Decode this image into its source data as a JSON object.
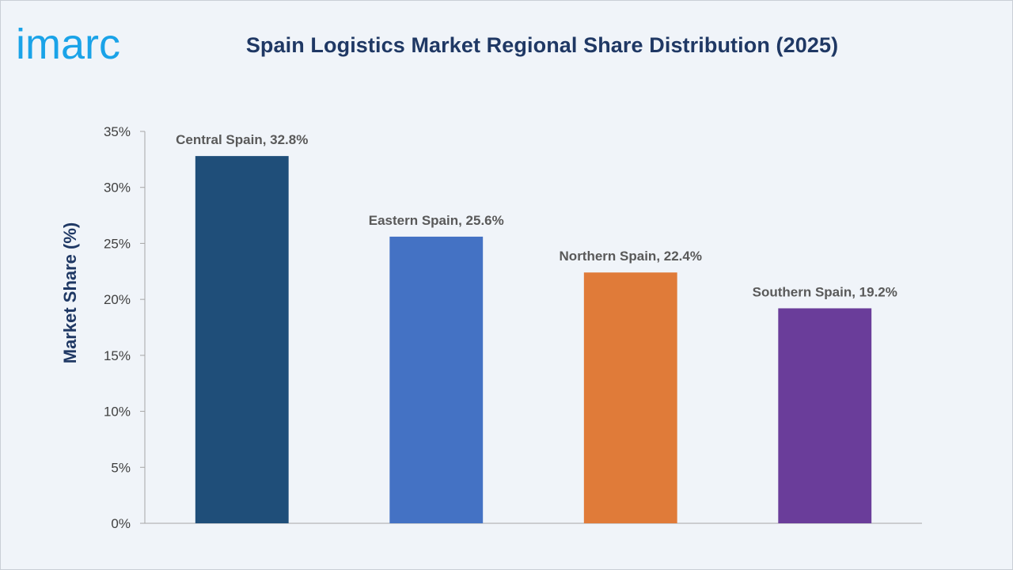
{
  "logo": {
    "text": "imarc",
    "color": "#1aa3e8"
  },
  "chart_data": {
    "type": "bar",
    "title": "Spain Logistics Market Regional Share Distribution (2025)",
    "xlabel": "",
    "ylabel": "Market Share (%)",
    "ylim": [
      0,
      35
    ],
    "yticks": [
      0,
      5,
      10,
      15,
      20,
      25,
      30,
      35
    ],
    "ytick_labels": [
      "0%",
      "5%",
      "10%",
      "15%",
      "20%",
      "25%",
      "30%",
      "35%"
    ],
    "categories": [
      "Central Spain",
      "Eastern Spain",
      "Northern Spain",
      "Southern Spain"
    ],
    "values": [
      32.8,
      25.6,
      22.4,
      19.2
    ],
    "data_labels": [
      "Central Spain, 32.8%",
      "Eastern Spain, 25.6%",
      "Northern Spain, 22.4%",
      "Southern Spain, 19.2%"
    ],
    "colors": [
      "#1f4e79",
      "#4472c4",
      "#e07b39",
      "#6a3d9a"
    ],
    "grid": false,
    "legend": "none"
  }
}
